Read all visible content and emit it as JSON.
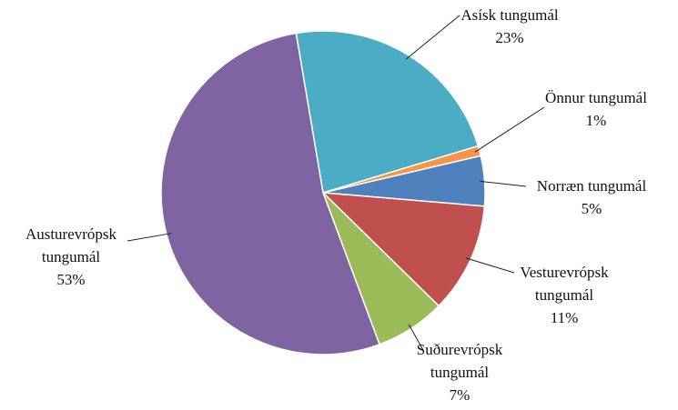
{
  "chart_data": {
    "type": "pie",
    "categories": [
      "Asísk tungumál",
      "Önnur tungumál",
      "Norræn tungumál",
      "Vesturevrópsk tungumál",
      "Suðurevrópsk tungumál",
      "Austurevrópsk tungumál"
    ],
    "values": [
      23,
      1,
      5,
      11,
      7,
      53
    ],
    "value_labels": [
      "23%",
      "1%",
      "5%",
      "11%",
      "7%",
      "53%"
    ],
    "colors": [
      "#4bacc6",
      "#f79646",
      "#4f81bd",
      "#c0504d",
      "#9bbb59",
      "#8064a2"
    ]
  }
}
